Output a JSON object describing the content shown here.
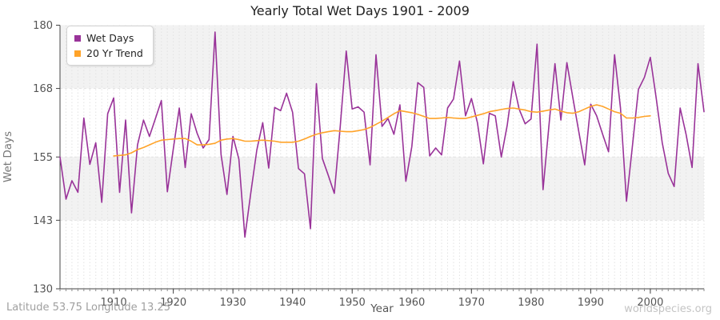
{
  "title": "Yearly Total Wet Days 1901 - 2009",
  "legend": {
    "items": [
      {
        "label": "Wet Days",
        "color": "#993399"
      },
      {
        "label": "20 Yr Trend",
        "color": "#FFA329"
      }
    ]
  },
  "footer": {
    "location": "Latitude 53.75 Longitude 13.25",
    "watermark": "worldspecies.org"
  },
  "chart_data": {
    "type": "line",
    "title": "Yearly Total Wet Days 1901 - 2009",
    "xlabel": "Year",
    "ylabel": "Wet Days",
    "x_range": [
      1901,
      2009
    ],
    "ylim": [
      130,
      180
    ],
    "yticks": [
      130,
      143,
      155,
      168,
      180
    ],
    "xticks": [
      1910,
      1920,
      1930,
      1940,
      1950,
      1960,
      1970,
      1980,
      1990,
      2000
    ],
    "grid": "vertical dashed line every year; shaded horizontal bands",
    "bands": [
      [
        143,
        155
      ],
      [
        168,
        180
      ]
    ],
    "legend_position": "top-left",
    "colors": {
      "band": "#f2f2f2",
      "grid": "#e2e2e2",
      "axis": "#444444"
    },
    "series": [
      {
        "name": "Wet Days",
        "color": "#993399",
        "x0": 1901,
        "values": [
          155.0,
          147.0,
          150.5,
          148.3,
          162.4,
          153.6,
          157.7,
          146.4,
          163.2,
          166.2,
          148.3,
          162.0,
          144.4,
          157.3,
          162.0,
          158.9,
          162.3,
          165.7,
          148.4,
          156.5,
          164.3,
          153.0,
          163.2,
          159.5,
          156.7,
          158.3,
          178.7,
          155.5,
          147.9,
          158.9,
          154.6,
          139.8,
          148.2,
          156.3,
          161.5,
          152.9,
          164.4,
          163.8,
          167.1,
          163.5,
          152.8,
          151.8,
          141.4,
          168.9,
          154.7,
          151.5,
          148.1,
          160.8,
          175.1,
          164.1,
          164.5,
          163.5,
          153.5,
          174.4,
          160.8,
          162.3,
          159.3,
          164.9,
          150.4,
          157.0,
          169.1,
          168.2,
          155.2,
          156.7,
          155.4,
          164.3,
          166.0,
          173.2,
          162.8,
          166.1,
          161.5,
          153.7,
          163.3,
          162.8,
          155.0,
          161.0,
          169.3,
          164.1,
          161.3,
          162.2,
          176.4,
          148.8,
          161.0,
          172.7,
          162.0,
          172.9,
          166.3,
          159.8,
          153.5,
          165.0,
          162.8,
          159.3,
          156.0,
          174.4,
          164.3,
          146.6,
          157.2,
          167.8,
          170.1,
          173.9,
          166.0,
          157.7,
          151.9,
          149.4,
          164.3,
          159.3,
          153.0,
          172.7,
          163.6
        ]
      },
      {
        "name": "20 Yr Trend",
        "color": "#FFA329",
        "x0": 1910,
        "values": [
          155.2,
          155.3,
          155.4,
          155.8,
          156.4,
          156.8,
          157.3,
          157.8,
          158.2,
          158.3,
          158.4,
          158.5,
          158.5,
          158.0,
          157.3,
          157.3,
          157.4,
          157.6,
          158.2,
          158.4,
          158.5,
          158.3,
          158.0,
          158.0,
          158.1,
          158.2,
          158.1,
          158.0,
          157.8,
          157.8,
          157.8,
          158.0,
          158.4,
          158.9,
          159.3,
          159.6,
          159.8,
          160.0,
          159.9,
          159.8,
          159.8,
          160.0,
          160.2,
          160.6,
          161.2,
          161.8,
          162.5,
          163.2,
          163.8,
          163.6,
          163.4,
          163.1,
          162.7,
          162.3,
          162.3,
          162.4,
          162.5,
          162.4,
          162.3,
          162.3,
          162.6,
          162.9,
          163.2,
          163.6,
          163.8,
          164.0,
          164.2,
          164.3,
          164.1,
          163.9,
          163.6,
          163.5,
          163.7,
          163.9,
          164.1,
          163.7,
          163.4,
          163.3,
          163.6,
          164.1,
          164.6,
          164.9,
          164.6,
          164.1,
          163.6,
          163.3,
          162.4,
          162.4,
          162.5,
          162.7,
          162.8
        ]
      }
    ]
  }
}
